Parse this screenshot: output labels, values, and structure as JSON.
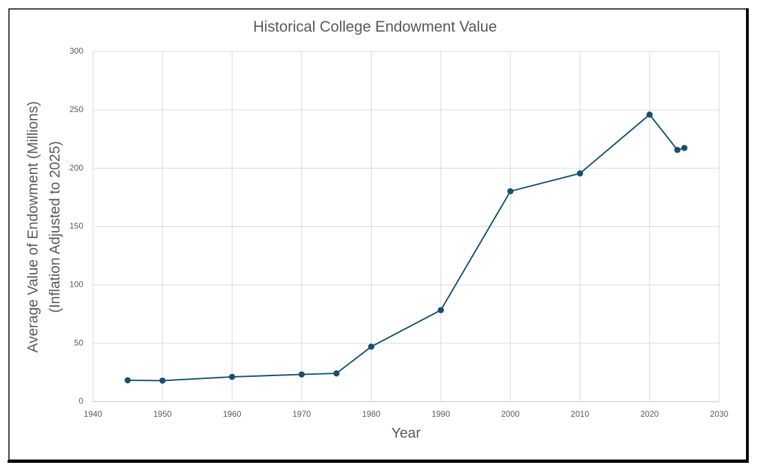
{
  "chart_data": {
    "type": "line",
    "title": "Historical College Endowment Value",
    "x_label": "Year",
    "y_label": [
      "Average Value of Endowment (Millions)",
      "(Inflation Adjusted to 2025)"
    ],
    "x": [
      1945,
      1950,
      1960,
      1970,
      1975,
      1980,
      1990,
      2000,
      2010,
      2020,
      2024,
      2025
    ],
    "series": [
      {
        "color": "#16506e",
        "values": [
          18.3,
          18,
          21.2,
          23.3,
          24.2,
          47.1,
          78.4,
          180.3,
          195.6,
          246,
          215.7,
          217.4
        ]
      }
    ],
    "xlim": [
      1940,
      2030
    ],
    "xticks": [
      1940,
      1950,
      1960,
      1970,
      1980,
      1990,
      2000,
      2010,
      2020,
      2030
    ],
    "ylim": [
      0,
      300
    ],
    "yticks": [
      0,
      50,
      100,
      150,
      200,
      250,
      300
    ],
    "grid": true
  }
}
